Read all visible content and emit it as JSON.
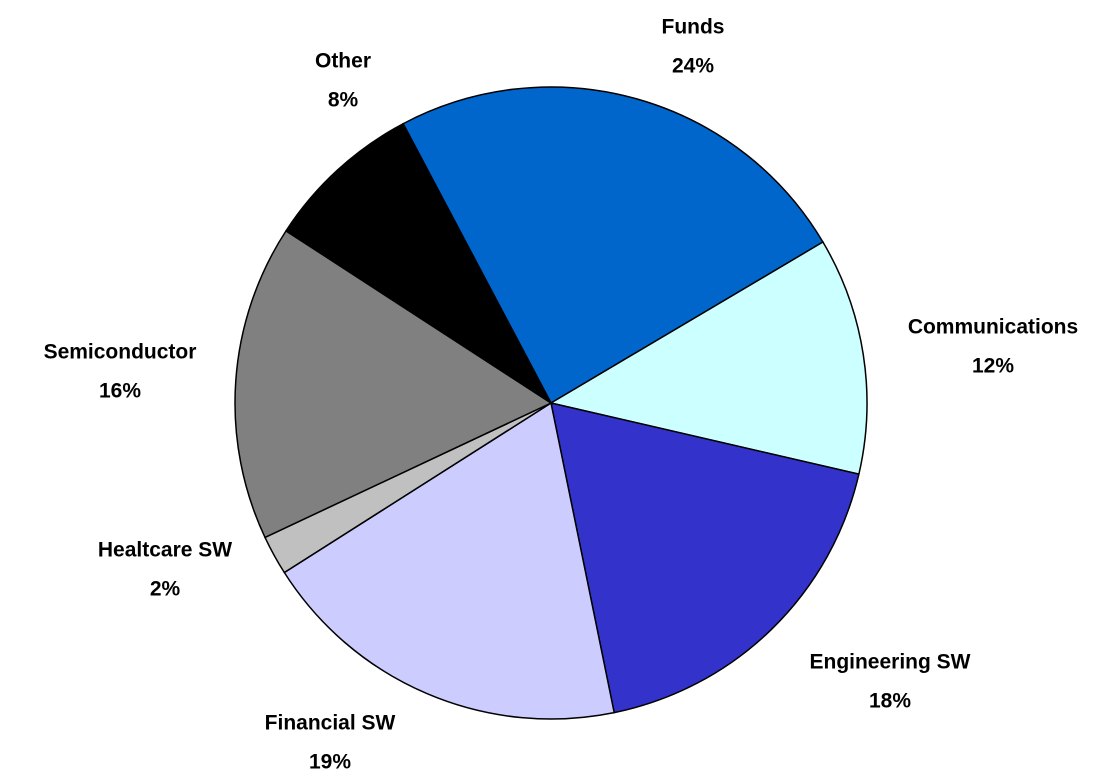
{
  "chart_data": {
    "type": "pie",
    "categories": [
      "Funds",
      "Communications",
      "Engineering SW",
      "Financial SW",
      "Healtcare SW",
      "Semiconductor",
      "Other"
    ],
    "values": [
      24,
      12,
      18,
      19,
      2,
      16,
      8
    ],
    "value_labels": [
      "24%",
      "12%",
      "18%",
      "19%",
      "2%",
      "16%",
      "8%"
    ],
    "colors": [
      "#0066cc",
      "#ccffff",
      "#3333cc",
      "#ccccff",
      "#c0c0c0",
      "#808080",
      "#000000"
    ]
  }
}
